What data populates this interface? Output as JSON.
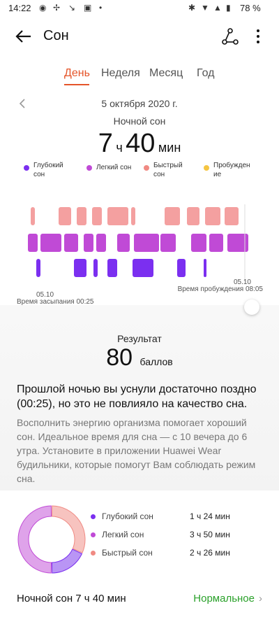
{
  "status": {
    "time": "14:22",
    "battery": "78 %"
  },
  "appbar": {
    "title": "Сон"
  },
  "tabs": [
    "День",
    "Неделя",
    "Месяц",
    "Год"
  ],
  "date": "5 октября 2020 г.",
  "summary": {
    "title": "Ночной сон",
    "hours": "7",
    "h_unit": "ч",
    "minutes": "40",
    "m_unit": "мин"
  },
  "legend": [
    {
      "label": "Глубокий сон",
      "color": "#7b2ff0"
    },
    {
      "label": "Легкий сон",
      "color": "#c04ad6"
    },
    {
      "label": "Быстрый сон",
      "color": "#f08a83"
    },
    {
      "label": "Пробуждение",
      "color": "#f5c542"
    }
  ],
  "chart_axis": {
    "start_date": "05.10",
    "start_label": "Время засыпания 00:25",
    "end_date": "05.10",
    "end_label": "Время пробуждения 08:05"
  },
  "result": {
    "title": "Результат",
    "score": "80",
    "unit": "баллов"
  },
  "headline": "Прошлой ночью вы уснули достаточно поздно (00:25), но это не повлияло на качество сна.",
  "paragraph": "Восполнить энергию организма помогает хороший сон. Идеальное время для сна — с 10 вечера до 6 утра. Установите в приложении Huawei Wear будильники, которые помогут Вам соблюдать режим сна.",
  "breakdown": [
    {
      "label": "Глубокий сон",
      "value": "1 ч 24 мин",
      "color": "#7b2ff0",
      "minutes": 84
    },
    {
      "label": "Легкий сон",
      "value": "3 ч 50 мин",
      "color": "#c04ad6",
      "minutes": 230
    },
    {
      "label": "Быстрый сон",
      "value": "2 ч 26 мин",
      "color": "#f08a83",
      "minutes": 146
    }
  ],
  "footer": {
    "label": "Ночной сон  7 ч 40 мин",
    "status": "Нормальное"
  }
}
